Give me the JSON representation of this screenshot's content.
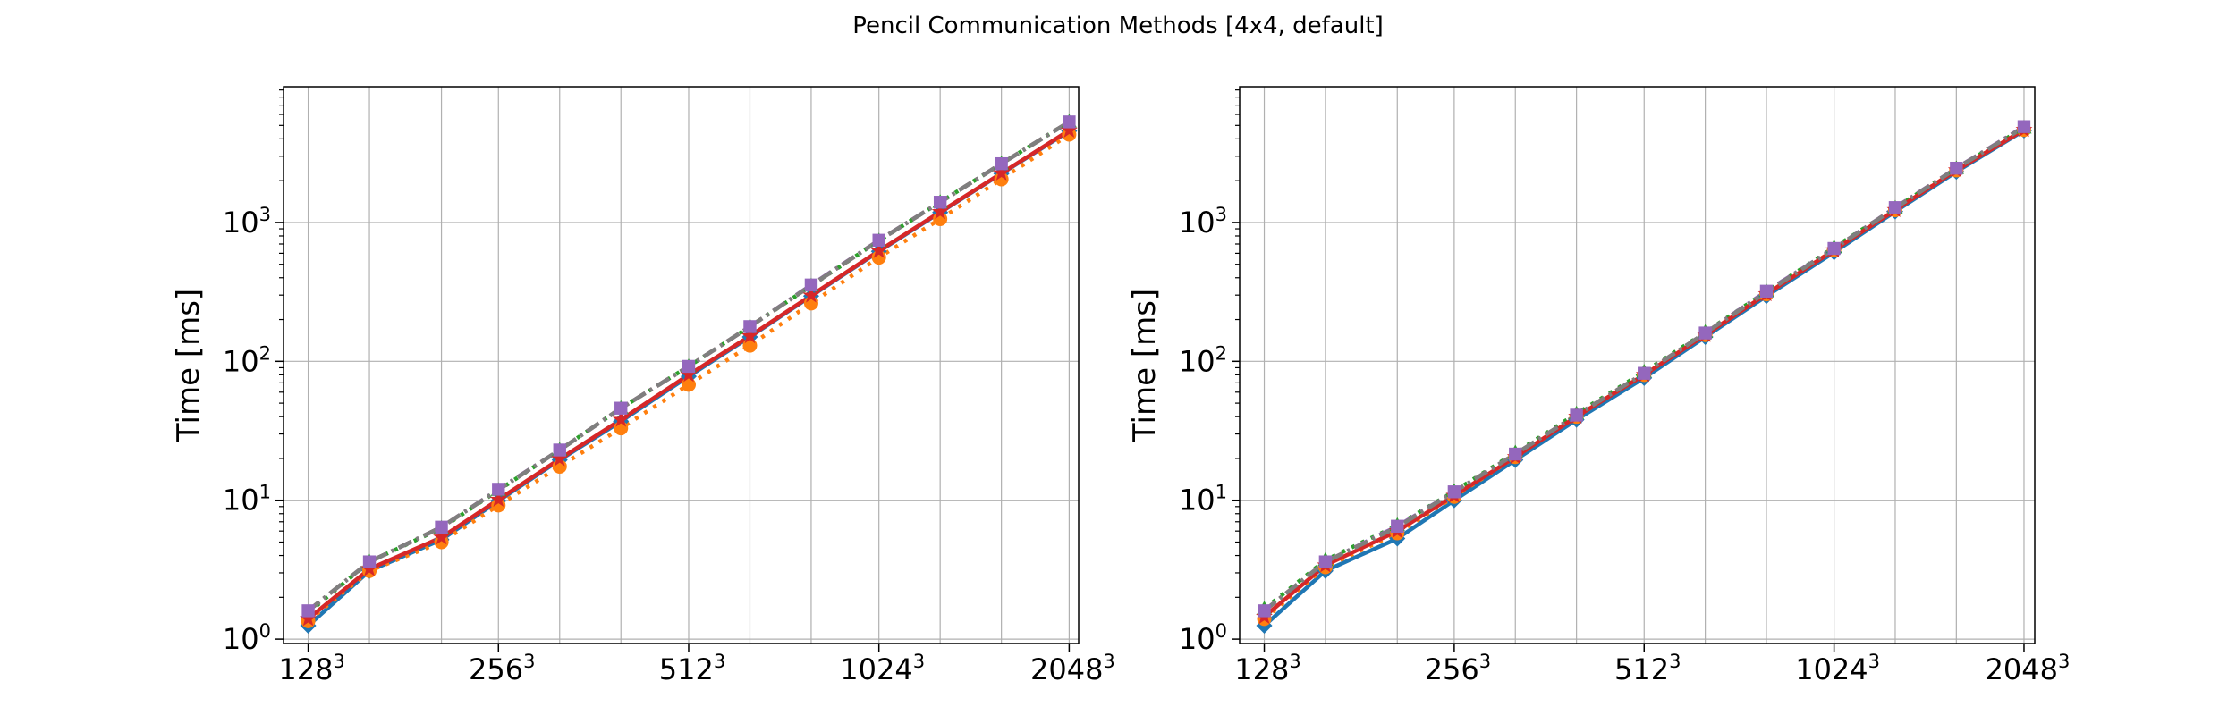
{
  "figure": {
    "title": "Pencil Communication Methods [4x4, default]"
  },
  "chart_data": [
    {
      "type": "line",
      "title": "",
      "xlabel": "",
      "ylabel": "Time [ms]",
      "yscale": "log",
      "grid": true,
      "x": [
        128,
        160,
        208,
        256,
        320,
        400,
        512,
        640,
        800,
        1024,
        1280,
        1600,
        2048
      ],
      "xticks": [
        {
          "base": "128",
          "exp": "3",
          "value": 128
        },
        {
          "base": "256",
          "exp": "3",
          "value": 256
        },
        {
          "base": "512",
          "exp": "3",
          "value": 512
        },
        {
          "base": "1024",
          "exp": "3",
          "value": 1024
        },
        {
          "base": "2048",
          "exp": "3",
          "value": 2048
        }
      ],
      "yticks": [
        {
          "base": "10",
          "exp": "0",
          "value": 1
        },
        {
          "base": "10",
          "exp": "1",
          "value": 10
        },
        {
          "base": "10",
          "exp": "2",
          "value": 100
        },
        {
          "base": "10",
          "exp": "3",
          "value": 1000
        }
      ],
      "xlim": [
        117,
        2120
      ],
      "ylim": [
        0.93,
        9500
      ],
      "series": [
        {
          "color": "#1f77b4",
          "dash": "",
          "marker": "diamond",
          "values": [
            1.25,
            3.1,
            5.2,
            9.9,
            19.5,
            37,
            78,
            150,
            295,
            620,
            1180,
            2250,
            4550
          ]
        },
        {
          "color": "#ff7f0e",
          "dash": "4 8",
          "marker": "circle",
          "values": [
            1.35,
            3.1,
            5.0,
            9.2,
            17.5,
            33,
            68,
            130,
            262,
            560,
            1060,
            2050,
            4300
          ]
        },
        {
          "color": "#2ca02c",
          "dash": "4 8",
          "marker": "triangle",
          "values": [
            1.55,
            3.6,
            6.3,
            11.8,
            23,
            46,
            92,
            178,
            350,
            740,
            1400,
            2650,
            5300
          ]
        },
        {
          "color": "#d62728",
          "dash": "",
          "marker": "star",
          "values": [
            1.4,
            3.2,
            5.4,
            10.1,
            19.8,
            38,
            80,
            152,
            298,
            625,
            1190,
            2260,
            4600
          ]
        },
        {
          "color": "#9467bd",
          "dash": "16 6 3 6",
          "marker": "square",
          "values": [
            1.6,
            3.6,
            6.4,
            12,
            23,
            46,
            92,
            178,
            355,
            745,
            1400,
            2650,
            5300
          ]
        },
        {
          "color": "#8c564b",
          "dash": "16 6 3 6",
          "marker": "none",
          "values": [
            1.6,
            3.6,
            6.4,
            11.9,
            23,
            46,
            92,
            178,
            352,
            742,
            1400,
            2650,
            5300
          ]
        },
        {
          "color": "#7f7f7f",
          "dash": "16 6 3 6",
          "marker": "none",
          "values": [
            1.6,
            3.6,
            6.4,
            11.9,
            23,
            46,
            92,
            178,
            352,
            742,
            1400,
            2650,
            5300
          ]
        }
      ]
    },
    {
      "type": "line",
      "title": "",
      "xlabel": "",
      "ylabel": "Time [ms]",
      "yscale": "log",
      "grid": true,
      "x": [
        128,
        160,
        208,
        256,
        320,
        400,
        512,
        640,
        800,
        1024,
        1280,
        1600,
        2048
      ],
      "xticks": [
        {
          "base": "128",
          "exp": "3",
          "value": 128
        },
        {
          "base": "256",
          "exp": "3",
          "value": 256
        },
        {
          "base": "512",
          "exp": "3",
          "value": 512
        },
        {
          "base": "1024",
          "exp": "3",
          "value": 1024
        },
        {
          "base": "2048",
          "exp": "3",
          "value": 2048
        }
      ],
      "yticks": [
        {
          "base": "10",
          "exp": "0",
          "value": 1
        },
        {
          "base": "10",
          "exp": "1",
          "value": 10
        },
        {
          "base": "10",
          "exp": "2",
          "value": 100
        },
        {
          "base": "10",
          "exp": "3",
          "value": 1000
        }
      ],
      "xlim": [
        117,
        2130
      ],
      "ylim": [
        0.93,
        9500
      ],
      "series": [
        {
          "color": "#1f77b4",
          "dash": "",
          "marker": "diamond",
          "values": [
            1.25,
            3.1,
            5.3,
            10,
            19.5,
            38,
            76,
            150,
            295,
            610,
            1200,
            2320,
            4600
          ]
        },
        {
          "color": "#ff7f0e",
          "dash": "4 8",
          "marker": "circle",
          "values": [
            1.4,
            3.3,
            5.8,
            10.6,
            20.5,
            40,
            80,
            155,
            305,
            635,
            1230,
            2380,
            4650
          ]
        },
        {
          "color": "#2ca02c",
          "dash": "4 8",
          "marker": "triangle",
          "values": [
            1.65,
            3.7,
            6.6,
            11.6,
            22,
            42,
            84,
            162,
            318,
            660,
            1270,
            2450,
            4800
          ]
        },
        {
          "color": "#d62728",
          "dash": "",
          "marker": "star",
          "values": [
            1.45,
            3.4,
            6.0,
            10.8,
            20.5,
            40,
            80,
            155,
            305,
            632,
            1230,
            2380,
            4650
          ]
        },
        {
          "color": "#9467bd",
          "dash": "16 6 3 6",
          "marker": "square",
          "values": [
            1.6,
            3.6,
            6.5,
            11.5,
            21.5,
            41,
            82,
            160,
            320,
            650,
            1280,
            2460,
            4900
          ]
        },
        {
          "color": "#8c564b",
          "dash": "16 6 3 6",
          "marker": "none",
          "values": [
            1.6,
            3.6,
            6.4,
            11.5,
            21.5,
            41,
            82,
            160,
            315,
            648,
            1270,
            2450,
            4850
          ]
        },
        {
          "color": "#7f7f7f",
          "dash": "16 6 3 6",
          "marker": "none",
          "values": [
            1.6,
            3.6,
            6.4,
            11.5,
            21.5,
            41,
            82,
            160,
            315,
            648,
            1270,
            2450,
            4850
          ]
        }
      ]
    }
  ]
}
